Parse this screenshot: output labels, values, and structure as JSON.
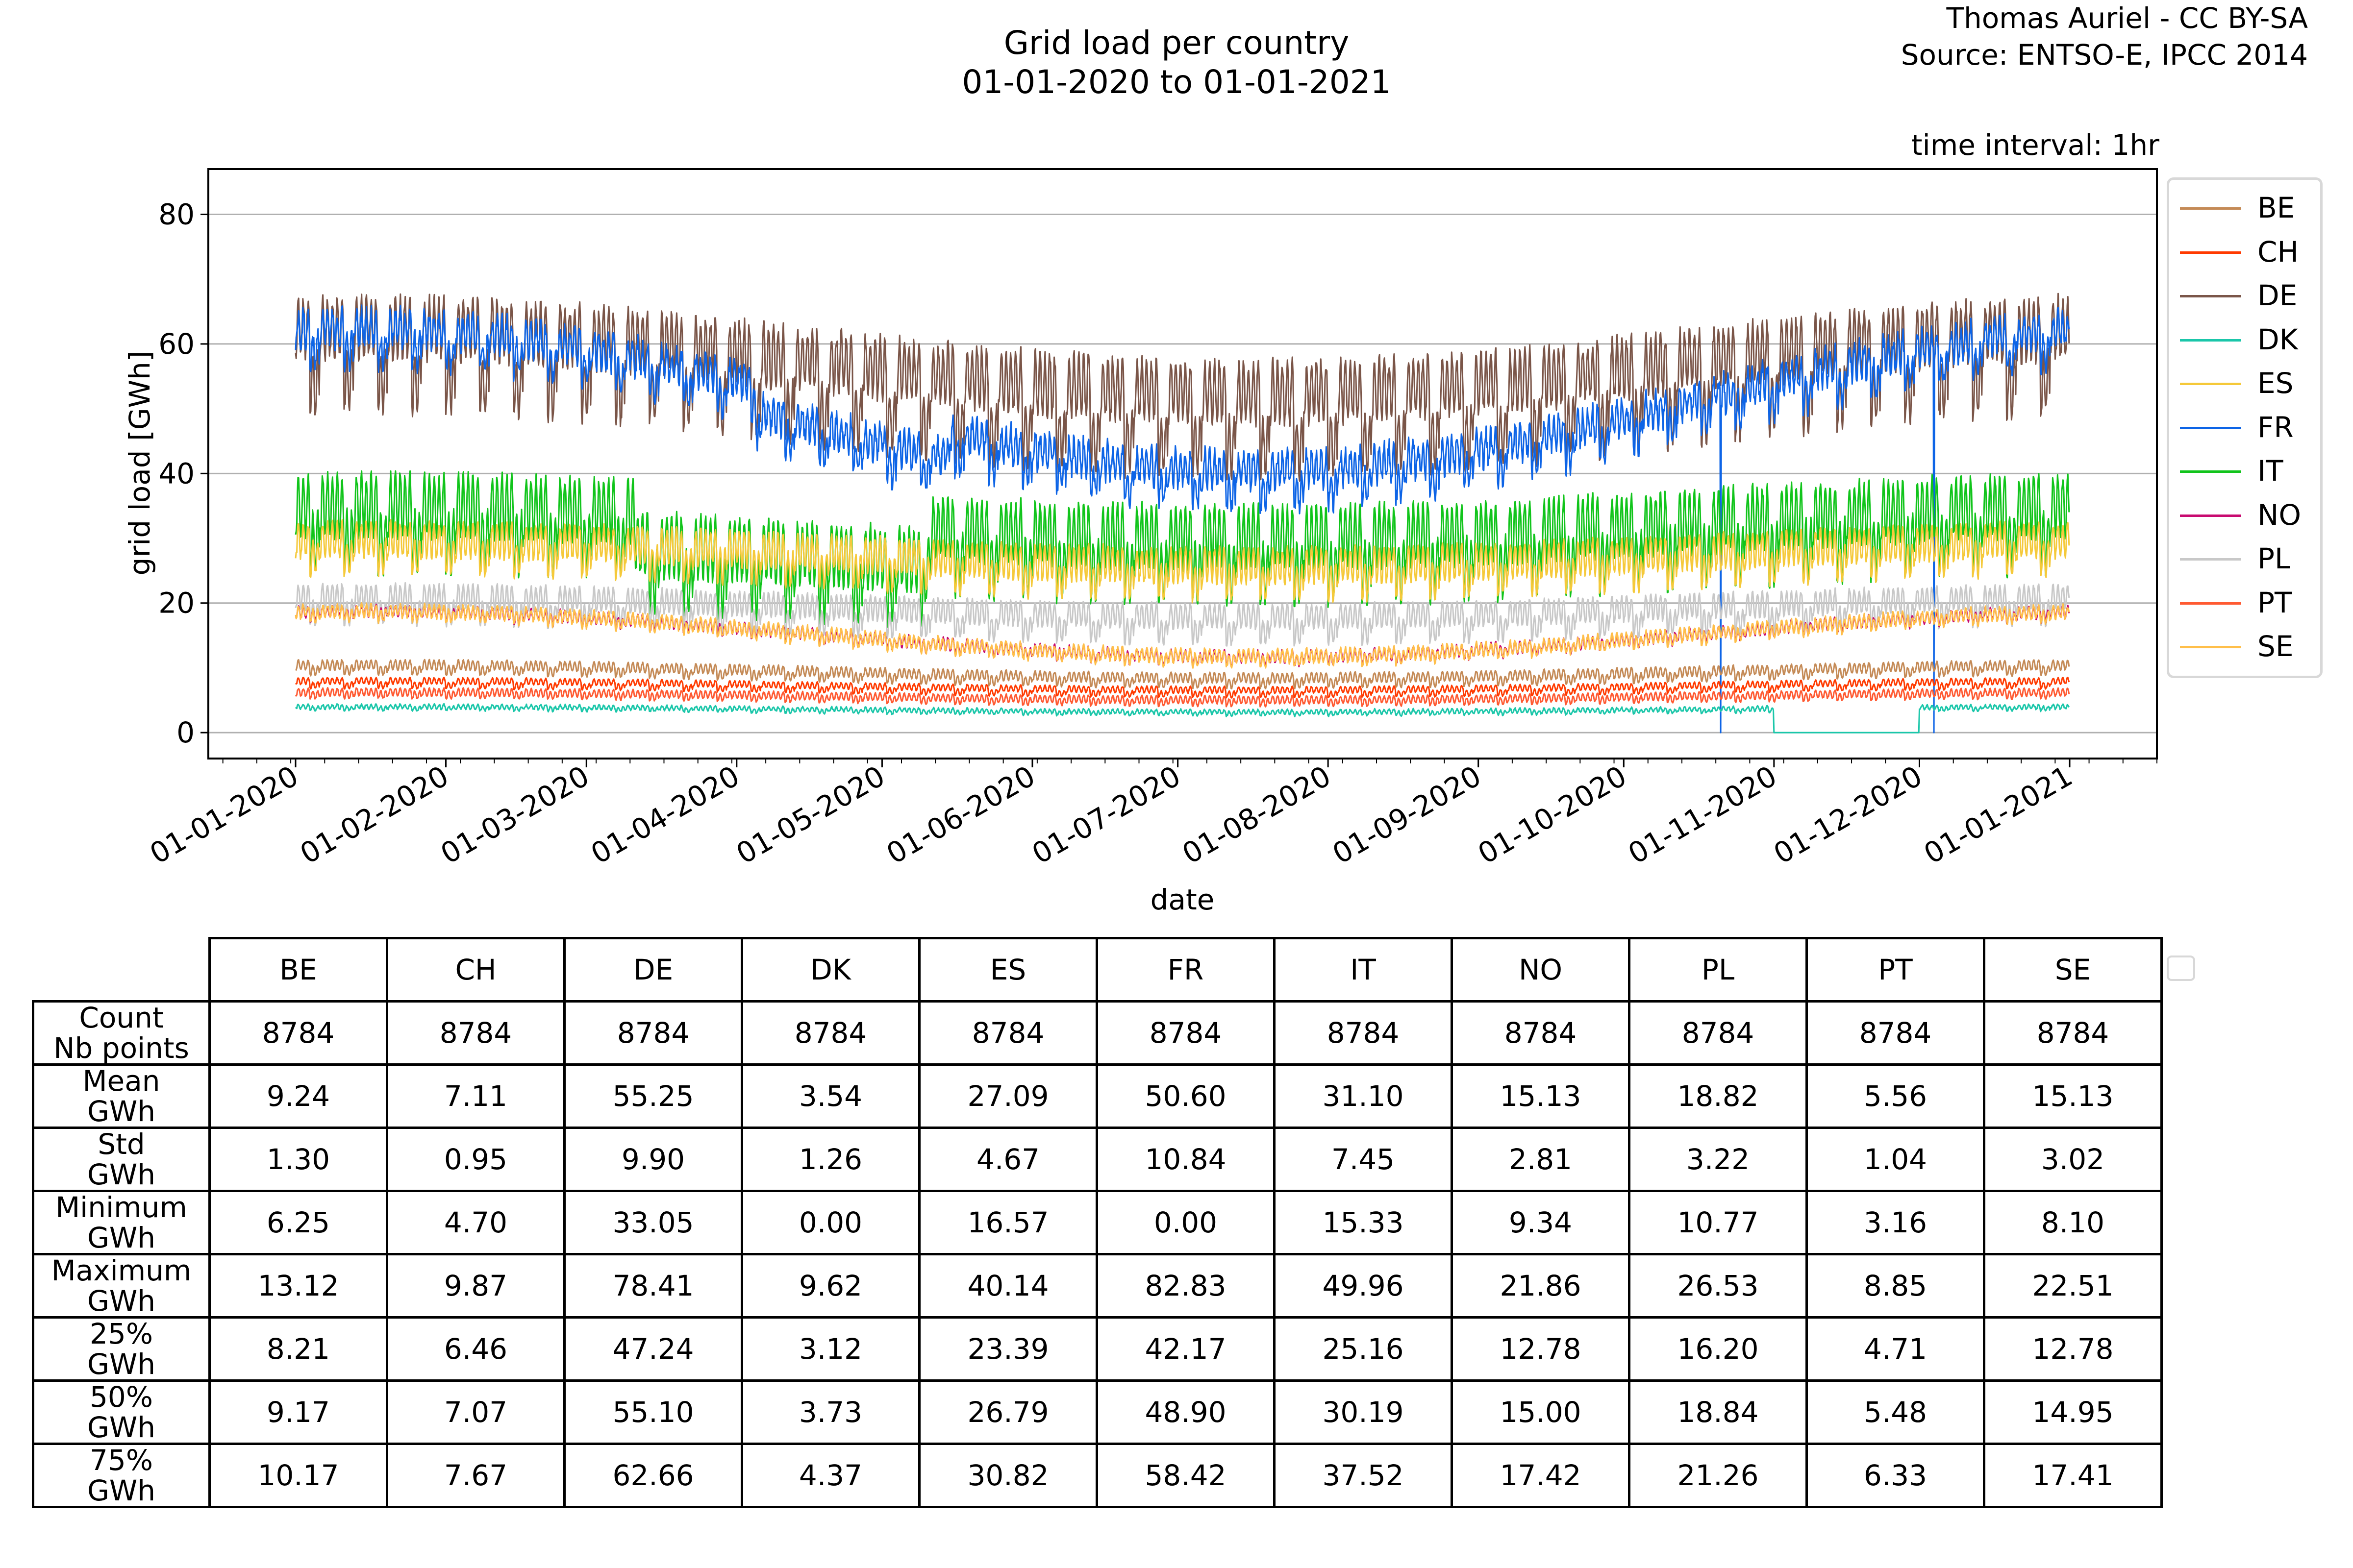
{
  "header": {
    "title_line1": "Grid load per country",
    "title_line2": "01-01-2020 to 01-01-2021",
    "credit_line1": "Thomas Auriel - CC BY-SA",
    "credit_line2": "Source: ENTSO-E, IPCC 2014",
    "interval": "time interval: 1hr"
  },
  "chart_data": {
    "type": "line",
    "title": "Grid load per country 01-01-2020 to 01-01-2021",
    "xlabel": "date",
    "ylabel": "grid load [GWh]",
    "ylim": [
      -4,
      87
    ],
    "yticks": [
      0,
      20,
      40,
      60,
      80
    ],
    "grid": "horizontal",
    "x_start": "2020-01-01",
    "x_end": "2021-01-01",
    "xlim_days": [
      -18,
      384
    ],
    "xticks": [
      "01-01-2020",
      "01-02-2020",
      "01-03-2020",
      "01-04-2020",
      "01-05-2020",
      "01-06-2020",
      "01-07-2020",
      "01-08-2020",
      "01-09-2020",
      "01-10-2020",
      "01-11-2020",
      "01-12-2020",
      "01-01-2021"
    ],
    "xtick_days": [
      0,
      31,
      60,
      91,
      121,
      152,
      182,
      213,
      244,
      274,
      305,
      335,
      366
    ],
    "sampling": "hourly",
    "legend_position": "right",
    "series": [
      {
        "name": "BE",
        "color": "#c48a56",
        "mean": 9.24,
        "std": 1.3,
        "min": 6.25,
        "max": 13.12,
        "season_amp": 1.0,
        "week_amp": 0.6,
        "day_amp": 1.4
      },
      {
        "name": "CH",
        "color": "#ff3a00",
        "mean": 7.11,
        "std": 0.95,
        "min": 4.7,
        "max": 9.87,
        "season_amp": 0.7,
        "week_amp": 0.5,
        "day_amp": 0.9
      },
      {
        "name": "DE",
        "color": "#7a5548",
        "mean": 55.25,
        "std": 9.9,
        "min": 33.05,
        "max": 78.41,
        "season_amp": 5.0,
        "week_amp": 6.0,
        "day_amp": 8.5
      },
      {
        "name": "DK",
        "color": "#1ac6a9",
        "mean": 3.54,
        "std": 1.26,
        "min": 0.0,
        "max": 9.62,
        "season_amp": 0.4,
        "week_amp": 0.2,
        "day_amp": 0.6,
        "zero_gap_days": [
          305,
          335
        ]
      },
      {
        "name": "ES",
        "color": "#f5c93a",
        "mean": 27.09,
        "std": 4.67,
        "min": 16.57,
        "max": 40.14,
        "season_amp": 2.0,
        "week_amp": 2.0,
        "day_amp": 5.0
      },
      {
        "name": "FR",
        "color": "#0d64e6",
        "mean": 50.6,
        "std": 10.84,
        "min": 0.0,
        "max": 82.83,
        "season_amp": 11.0,
        "week_amp": 2.5,
        "day_amp": 4.5,
        "zero_spike_days": [
          294,
          338
        ]
      },
      {
        "name": "IT",
        "color": "#11c41b",
        "mean": 31.1,
        "std": 7.45,
        "min": 15.33,
        "max": 49.96,
        "season_amp": 2.5,
        "week_amp": 4.0,
        "day_amp": 9.0
      },
      {
        "name": "NO",
        "color": "#c80a70",
        "mean": 15.13,
        "std": 2.81,
        "min": 9.34,
        "max": 21.86,
        "season_amp": 3.5,
        "week_amp": 0.4,
        "day_amp": 1.5
      },
      {
        "name": "PL",
        "color": "#c8c8c8",
        "mean": 18.82,
        "std": 3.22,
        "min": 10.77,
        "max": 26.53,
        "season_amp": 1.5,
        "week_amp": 1.8,
        "day_amp": 3.5
      },
      {
        "name": "PT",
        "color": "#ff5a32",
        "mean": 5.56,
        "std": 1.04,
        "min": 3.16,
        "max": 8.85,
        "season_amp": 0.6,
        "week_amp": 0.3,
        "day_amp": 1.1
      },
      {
        "name": "SE",
        "color": "#ffbf4a",
        "mean": 15.13,
        "std": 3.02,
        "min": 8.1,
        "max": 22.51,
        "season_amp": 3.5,
        "week_amp": 0.5,
        "day_amp": 1.8
      }
    ]
  },
  "table": {
    "columns": [
      "BE",
      "CH",
      "DE",
      "DK",
      "ES",
      "FR",
      "IT",
      "NO",
      "PL",
      "PT",
      "SE"
    ],
    "rows": [
      {
        "label1": "Count",
        "label2": "Nb points",
        "values": [
          "8784",
          "8784",
          "8784",
          "8784",
          "8784",
          "8784",
          "8784",
          "8784",
          "8784",
          "8784",
          "8784"
        ]
      },
      {
        "label1": "Mean",
        "label2": "GWh",
        "values": [
          "9.24",
          "7.11",
          "55.25",
          "3.54",
          "27.09",
          "50.60",
          "31.10",
          "15.13",
          "18.82",
          "5.56",
          "15.13"
        ]
      },
      {
        "label1": "Std",
        "label2": "GWh",
        "values": [
          "1.30",
          "0.95",
          "9.90",
          "1.26",
          "4.67",
          "10.84",
          "7.45",
          "2.81",
          "3.22",
          "1.04",
          "3.02"
        ]
      },
      {
        "label1": "Minimum",
        "label2": "GWh",
        "values": [
          "6.25",
          "4.70",
          "33.05",
          "0.00",
          "16.57",
          "0.00",
          "15.33",
          "9.34",
          "10.77",
          "3.16",
          "8.10"
        ]
      },
      {
        "label1": "Maximum",
        "label2": "GWh",
        "values": [
          "13.12",
          "9.87",
          "78.41",
          "9.62",
          "40.14",
          "82.83",
          "49.96",
          "21.86",
          "26.53",
          "8.85",
          "22.51"
        ]
      },
      {
        "label1": "25%",
        "label2": "GWh",
        "values": [
          "8.21",
          "6.46",
          "47.24",
          "3.12",
          "23.39",
          "42.17",
          "25.16",
          "12.78",
          "16.20",
          "4.71",
          "12.78"
        ]
      },
      {
        "label1": "50%",
        "label2": "GWh",
        "values": [
          "9.17",
          "7.07",
          "55.10",
          "3.73",
          "26.79",
          "48.90",
          "30.19",
          "15.00",
          "18.84",
          "5.48",
          "14.95"
        ]
      },
      {
        "label1": "75%",
        "label2": "GWh",
        "values": [
          "10.17",
          "7.67",
          "62.66",
          "4.37",
          "30.82",
          "58.42",
          "37.52",
          "17.42",
          "21.26",
          "6.33",
          "17.41"
        ]
      }
    ]
  }
}
